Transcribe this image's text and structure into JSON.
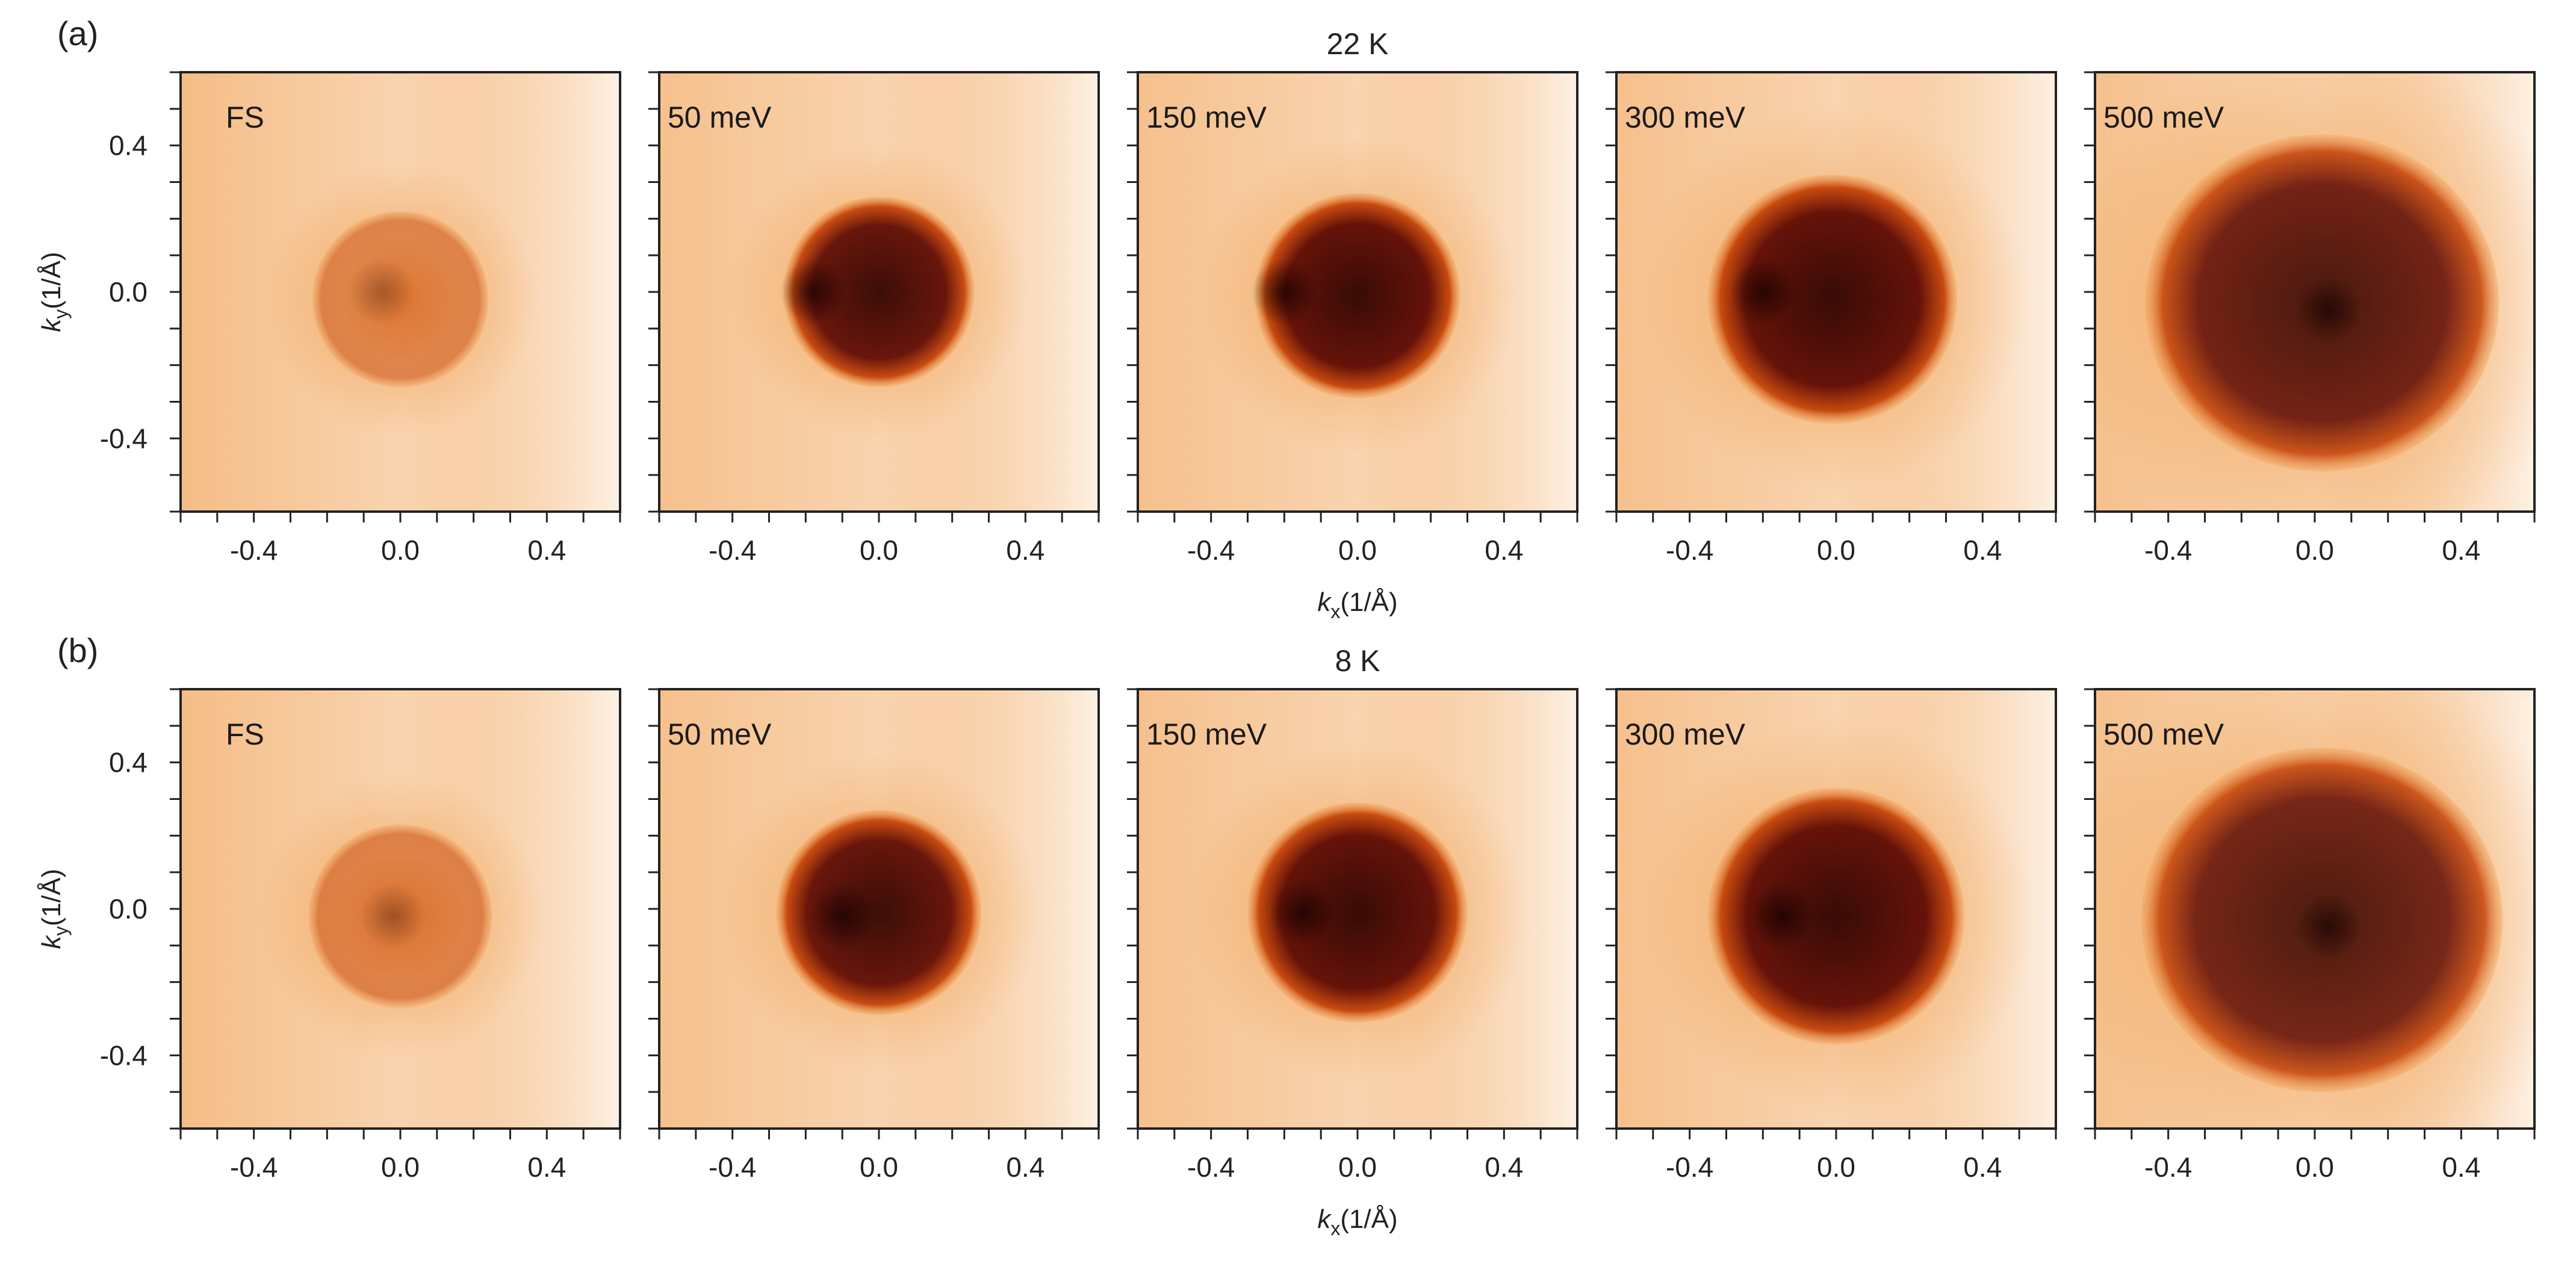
{
  "figure": {
    "rows": [
      {
        "panel_label": "(a)",
        "title": "22 K"
      },
      {
        "panel_label": "(b)",
        "title": "8 K"
      }
    ],
    "xlabel_base": "k",
    "xlabel_sub": "x",
    "xlabel_unit": "(1/Å)",
    "ylabel_base": "k",
    "ylabel_sub": "y",
    "ylabel_unit": "(1/Å)"
  },
  "colors": {
    "background": "#fbe8d4",
    "low": "#fdf1e4",
    "mid": "#f1a052",
    "high": "#c23c00",
    "max": "#2a0000",
    "axis": "#222222"
  },
  "chart_data": [
    {
      "type": "heatmap",
      "title": "22 K",
      "panels": [
        {
          "label": "FS",
          "kx_center": 0.0,
          "ky_center": -0.02,
          "radius": 0.24,
          "intensity": 0.35,
          "hot_kx": -0.05,
          "hot_ky": 0.0
        },
        {
          "label": "50 meV",
          "kx_center": 0.0,
          "ky_center": 0.0,
          "radius": 0.26,
          "intensity": 0.9,
          "hot_kx": -0.18,
          "hot_ky": 0.0
        },
        {
          "label": "150 meV",
          "kx_center": 0.0,
          "ky_center": -0.01,
          "radius": 0.28,
          "intensity": 0.92,
          "hot_kx": -0.2,
          "hot_ky": 0.0
        },
        {
          "label": "300 meV",
          "kx_center": -0.01,
          "ky_center": -0.02,
          "radius": 0.34,
          "intensity": 0.92,
          "hot_kx": -0.2,
          "hot_ky": 0.0
        },
        {
          "label": "500 meV",
          "kx_center": 0.02,
          "ky_center": -0.03,
          "radius": 0.46,
          "intensity": 0.82,
          "hot_kx": 0.04,
          "hot_ky": -0.05
        }
      ],
      "xlabel": "kx(1/Å)",
      "ylabel": "ky(1/Å)",
      "xlim": [
        -0.6,
        0.6
      ],
      "ylim": [
        -0.6,
        0.6
      ],
      "xticks": [
        -0.4,
        0.0,
        0.4
      ],
      "yticks": [
        -0.4,
        0.0,
        0.4
      ]
    },
    {
      "type": "heatmap",
      "title": "8 K",
      "panels": [
        {
          "label": "FS",
          "kx_center": 0.0,
          "ky_center": -0.02,
          "radius": 0.25,
          "intensity": 0.38,
          "hot_kx": -0.02,
          "hot_ky": -0.02
        },
        {
          "label": "50 meV",
          "kx_center": 0.0,
          "ky_center": -0.01,
          "radius": 0.28,
          "intensity": 0.9,
          "hot_kx": -0.1,
          "hot_ky": -0.02
        },
        {
          "label": "150 meV",
          "kx_center": 0.0,
          "ky_center": -0.01,
          "radius": 0.3,
          "intensity": 0.92,
          "hot_kx": -0.15,
          "hot_ky": -0.01
        },
        {
          "label": "300 meV",
          "kx_center": 0.0,
          "ky_center": -0.02,
          "radius": 0.35,
          "intensity": 0.92,
          "hot_kx": -0.15,
          "hot_ky": -0.02
        },
        {
          "label": "500 meV",
          "kx_center": 0.02,
          "ky_center": -0.03,
          "radius": 0.47,
          "intensity": 0.8,
          "hot_kx": 0.04,
          "hot_ky": -0.05
        }
      ],
      "xlabel": "kx(1/Å)",
      "ylabel": "ky(1/Å)",
      "xlim": [
        -0.6,
        0.6
      ],
      "ylim": [
        -0.6,
        0.6
      ],
      "xticks": [
        -0.4,
        0.0,
        0.4
      ],
      "yticks": [
        -0.4,
        0.0,
        0.4
      ]
    }
  ]
}
